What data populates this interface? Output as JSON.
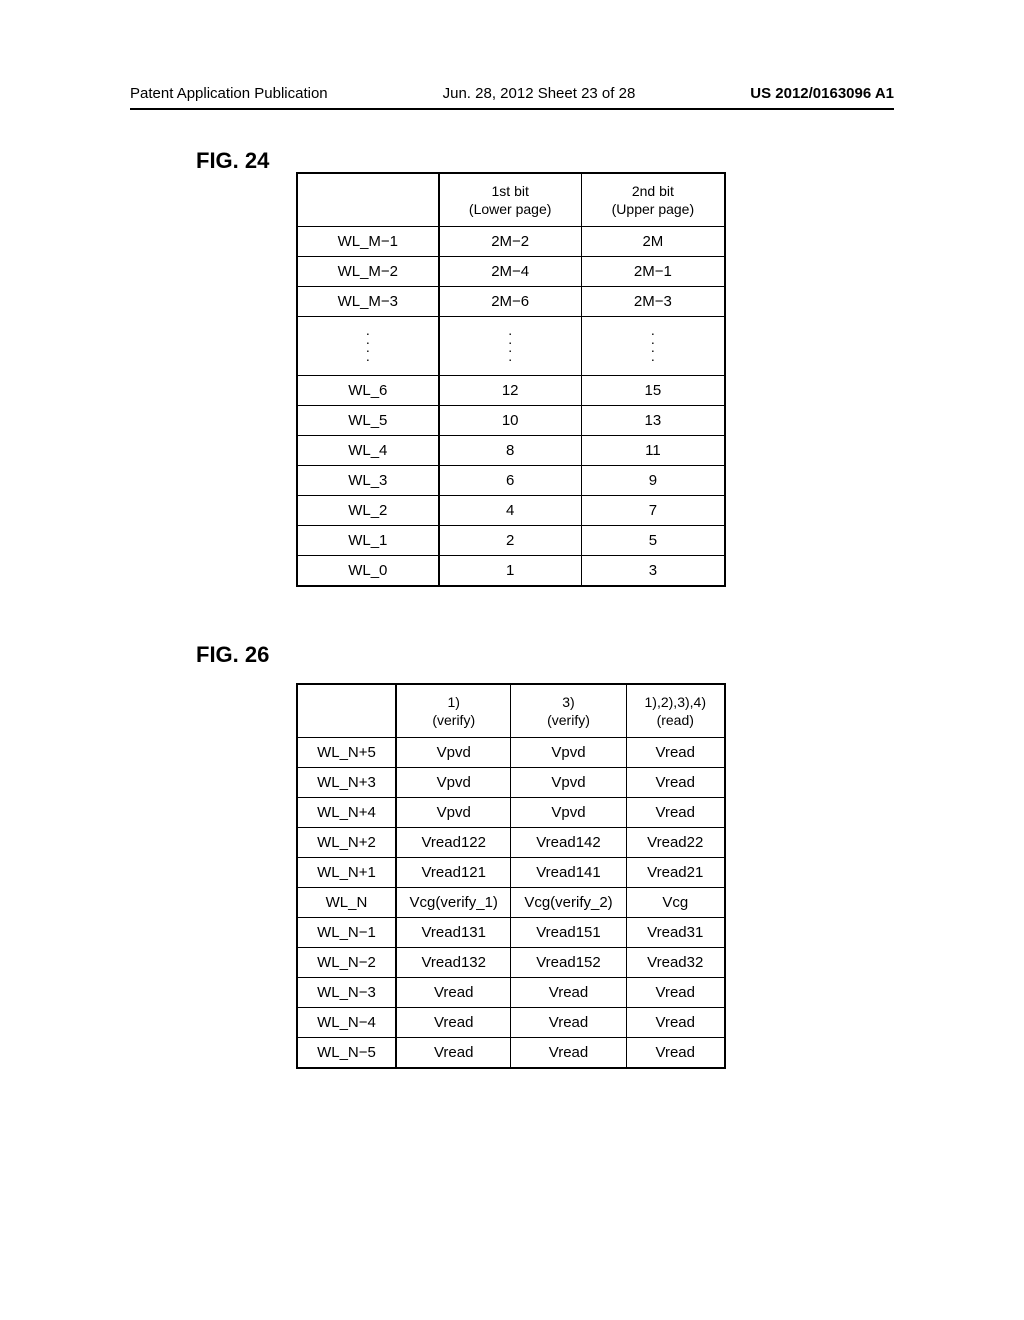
{
  "header": {
    "left": "Patent Application Publication",
    "center": "Jun. 28, 2012  Sheet 23 of 28",
    "right": "US 2012/0163096 A1"
  },
  "fig24": {
    "label": "FIG. 24",
    "columns": [
      "",
      "1st bit\n(Lower page)",
      "2nd bit\n(Upper page)"
    ],
    "rows_top": [
      [
        "WL_M−1",
        "2M−2",
        "2M"
      ],
      [
        "WL_M−2",
        "2M−4",
        "2M−1"
      ],
      [
        "WL_M−3",
        "2M−6",
        "2M−3"
      ]
    ],
    "rows_bottom": [
      [
        "WL_6",
        "12",
        "15"
      ],
      [
        "WL_5",
        "10",
        "13"
      ],
      [
        "WL_4",
        "8",
        "11"
      ],
      [
        "WL_3",
        "6",
        "9"
      ],
      [
        "WL_2",
        "4",
        "7"
      ],
      [
        "WL_1",
        "2",
        "5"
      ],
      [
        "WL_0",
        "1",
        "3"
      ]
    ]
  },
  "fig26": {
    "label": "FIG. 26",
    "columns": [
      "",
      "1)\n(verify)",
      "3)\n(verify)",
      "1),2),3),4)\n(read)"
    ],
    "rows": [
      [
        "WL_N+5",
        "Vpvd",
        "Vpvd",
        "Vread"
      ],
      [
        "WL_N+3",
        "Vpvd",
        "Vpvd",
        "Vread"
      ],
      [
        "WL_N+4",
        "Vpvd",
        "Vpvd",
        "Vread"
      ],
      [
        "WL_N+2",
        "Vread122",
        "Vread142",
        "Vread22"
      ],
      [
        "WL_N+1",
        "Vread121",
        "Vread141",
        "Vread21"
      ],
      [
        "WL_N",
        "Vcg(verify_1)",
        "Vcg(verify_2)",
        "Vcg"
      ],
      [
        "WL_N−1",
        "Vread131",
        "Vread151",
        "Vread31"
      ],
      [
        "WL_N−2",
        "Vread132",
        "Vread152",
        "Vread32"
      ],
      [
        "WL_N−3",
        "Vread",
        "Vread",
        "Vread"
      ],
      [
        "WL_N−4",
        "Vread",
        "Vread",
        "Vread"
      ],
      [
        "WL_N−5",
        "Vread",
        "Vread",
        "Vread"
      ]
    ]
  }
}
